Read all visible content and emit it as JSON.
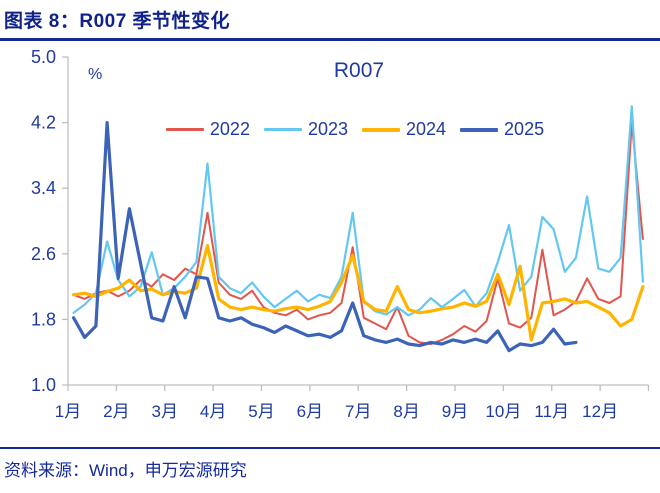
{
  "header": {
    "title": "图表 8：R007 季节性变化"
  },
  "footer": {
    "source": "资料来源：Wind，申万宏源研究"
  },
  "chart_data": {
    "type": "line",
    "title": "R007",
    "unit_label": "%",
    "legend_position": "top-center",
    "grid": "off",
    "x_axis": {
      "label": "",
      "tick_labels": [
        "1月",
        "2月",
        "3月",
        "4月",
        "5月",
        "6月",
        "7月",
        "8月",
        "9月",
        "10月",
        "11月",
        "12月"
      ],
      "points_per_year": 52,
      "note": "weekly observations across one calendar year"
    },
    "y_axis": {
      "label": "%",
      "min": 1.0,
      "max": 5.0,
      "tick_step": 0.8,
      "tick_labels": [
        "5.0",
        "4.2",
        "3.4",
        "2.6",
        "1.8",
        "1.0"
      ]
    },
    "colors": {
      "axis_text": "#1f3aa0",
      "axis_line": "#bfbfbf",
      "title_text": "#10228a",
      "rule": "#15299b"
    },
    "series": [
      {
        "name": "2022",
        "color": "#e2554d",
        "stroke_width": 2,
        "values": [
          2.1,
          2.05,
          2.12,
          2.15,
          2.08,
          2.15,
          2.28,
          2.2,
          2.35,
          2.28,
          2.42,
          2.35,
          3.1,
          2.25,
          2.1,
          2.05,
          2.15,
          1.95,
          1.88,
          1.85,
          1.92,
          1.8,
          1.85,
          1.88,
          2.0,
          2.68,
          1.82,
          1.75,
          1.68,
          1.95,
          1.6,
          1.52,
          1.5,
          1.55,
          1.62,
          1.72,
          1.65,
          1.78,
          2.3,
          1.75,
          1.7,
          1.82,
          2.65,
          1.85,
          1.92,
          2.02,
          2.3,
          2.05,
          2.0,
          2.08,
          4.2,
          2.78
        ]
      },
      {
        "name": "2023",
        "color": "#63c7f2",
        "stroke_width": 2.2,
        "values": [
          1.88,
          1.98,
          2.12,
          2.75,
          2.28,
          2.08,
          2.2,
          2.62,
          2.1,
          2.18,
          2.32,
          2.5,
          3.7,
          2.32,
          2.18,
          2.12,
          2.25,
          2.08,
          1.95,
          2.05,
          2.15,
          2.02,
          2.1,
          2.06,
          2.32,
          3.1,
          2.02,
          1.9,
          1.86,
          1.95,
          1.85,
          1.92,
          2.06,
          1.95,
          2.05,
          2.16,
          1.96,
          2.12,
          2.5,
          2.95,
          2.15,
          2.32,
          3.05,
          2.9,
          2.38,
          2.55,
          3.3,
          2.42,
          2.38,
          2.55,
          4.4,
          2.26
        ]
      },
      {
        "name": "2024",
        "color": "#ffb400",
        "stroke_width": 3.2,
        "values": [
          2.1,
          2.12,
          2.08,
          2.14,
          2.18,
          2.28,
          2.15,
          2.17,
          2.1,
          2.14,
          2.12,
          2.18,
          2.7,
          2.05,
          1.95,
          1.92,
          1.95,
          1.92,
          1.9,
          1.93,
          1.95,
          1.92,
          1.96,
          2.02,
          2.25,
          2.58,
          2.02,
          1.92,
          1.9,
          2.2,
          1.92,
          1.88,
          1.9,
          1.93,
          1.95,
          2.0,
          1.96,
          2.02,
          2.35,
          1.98,
          2.45,
          1.55,
          2.0,
          2.02,
          2.05,
          2.0,
          2.02,
          1.95,
          1.88,
          1.72,
          1.8,
          2.2
        ]
      },
      {
        "name": "2025",
        "color": "#3d63b8",
        "stroke_width": 3.2,
        "values": [
          1.82,
          1.58,
          1.72,
          4.2,
          2.3,
          3.15,
          2.48,
          1.82,
          1.78,
          2.2,
          1.82,
          2.32,
          2.3,
          1.82,
          1.78,
          1.82,
          1.74,
          1.7,
          1.64,
          1.72,
          1.66,
          1.6,
          1.62,
          1.58,
          1.66,
          2.0,
          1.6,
          1.55,
          1.52,
          1.56,
          1.5,
          1.48,
          1.52,
          1.5,
          1.55,
          1.52,
          1.56,
          1.52,
          1.66,
          1.42,
          1.5,
          1.48,
          1.52,
          1.68,
          1.5,
          1.52
        ]
      }
    ]
  }
}
